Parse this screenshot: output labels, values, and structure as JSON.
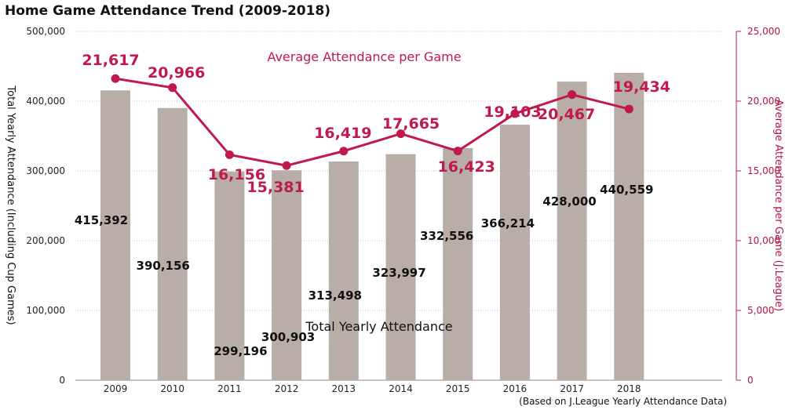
{
  "chart_data": {
    "type": "bar",
    "title": "Home Game Attendance Trend (2009-2018)",
    "ylabel": "Total Yearly Attendance (Including Cup Games)",
    "y2label": "Average Attendance per Game  (J.League)",
    "source_note": "(Based on J.League Yearly Attendance Data)",
    "categories": [
      "2009",
      "2010",
      "2011",
      "2012",
      "2013",
      "2014",
      "2015",
      "2016",
      "2017",
      "2018"
    ],
    "ylim": [
      0,
      500000
    ],
    "y2lim": [
      0,
      25000
    ],
    "yticks": [
      "0",
      "100,000",
      "200,000",
      "300,000",
      "400,000",
      "500,000"
    ],
    "y2ticks": [
      "0",
      "5,000",
      "10,000",
      "15,000",
      "20,000",
      "25,000"
    ],
    "bar_color": "#b9ada7",
    "line_color": "#c01a4c",
    "series": [
      {
        "name": "Total Yearly Attendance",
        "type": "bar",
        "axis": "left",
        "values": [
          415392,
          390156,
          299196,
          300903,
          313498,
          323997,
          332556,
          366214,
          428000,
          440559
        ],
        "labels": [
          "415,392",
          "390,156",
          "299,196",
          "300,903",
          "313,498",
          "323,997",
          "332,556",
          "366,214",
          "428,000",
          "440,559"
        ]
      },
      {
        "name": "Average Attendance per Game",
        "type": "line",
        "axis": "right",
        "values": [
          21617,
          20966,
          16156,
          15381,
          16419,
          17665,
          16423,
          19103,
          20467,
          19434
        ],
        "labels": [
          "21,617",
          "20,966",
          "16,156",
          "15,381",
          "16,419",
          "17,665",
          "16,423",
          "19,103",
          "20,467",
          "19,434"
        ]
      }
    ]
  }
}
